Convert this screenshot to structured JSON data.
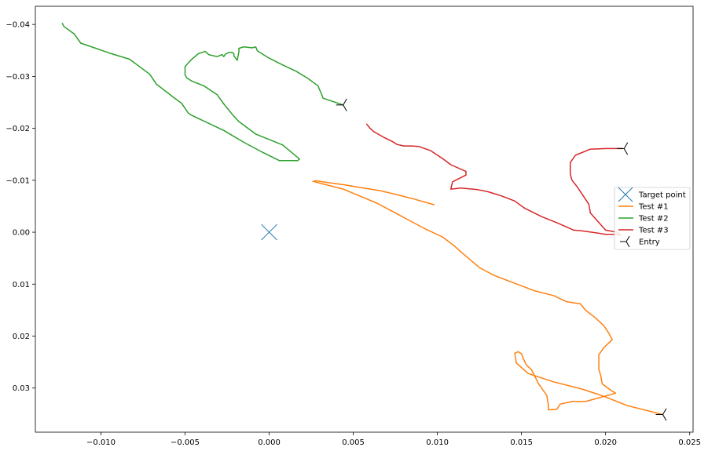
{
  "chart_data": {
    "type": "line",
    "title": "",
    "xlabel": "",
    "ylabel": "",
    "xlim": [
      -0.0139,
      0.0252
    ],
    "ylim": [
      0.0385,
      -0.0435
    ],
    "y_inverted": true,
    "grid": false,
    "xticks": [
      -0.01,
      -0.005,
      0.0,
      0.005,
      0.01,
      0.015,
      0.02,
      0.025
    ],
    "xtick_labels": [
      "−0.010",
      "−0.005",
      "0.000",
      "0.005",
      "0.010",
      "0.015",
      "0.020",
      "0.025"
    ],
    "yticks": [
      -0.04,
      -0.03,
      -0.02,
      -0.01,
      0.0,
      0.01,
      0.02,
      0.03
    ],
    "ytick_labels": [
      "−0.04",
      "−0.03",
      "−0.02",
      "−0.01",
      "0.00",
      "0.01",
      "0.02",
      "0.03"
    ],
    "legend": {
      "placement": "center-right",
      "entries": [
        "Target point",
        "Test #1",
        "Test #2",
        "Test #3",
        "Entry"
      ]
    },
    "target_point": {
      "name": "Target point",
      "marker": "x",
      "color": "#1f77b4",
      "x": 0.0,
      "y": 0.0
    },
    "series": [
      {
        "name": "Test #1",
        "color": "#ff7f0e",
        "points": [
          [
            0.0234,
            0.0351
          ],
          [
            0.0213,
            0.0334
          ],
          [
            0.0199,
            0.0316
          ],
          [
            0.0186,
            0.0302
          ],
          [
            0.0169,
            0.0288
          ],
          [
            0.0154,
            0.0272
          ],
          [
            0.0147,
            0.0252
          ],
          [
            0.0146,
            0.0233
          ],
          [
            0.0148,
            0.023
          ],
          [
            0.015,
            0.0234
          ],
          [
            0.0151,
            0.0243
          ],
          [
            0.0153,
            0.0256
          ],
          [
            0.0156,
            0.0265
          ],
          [
            0.0158,
            0.0278
          ],
          [
            0.016,
            0.0291
          ],
          [
            0.0163,
            0.0305
          ],
          [
            0.0165,
            0.0314
          ],
          [
            0.0166,
            0.0333
          ],
          [
            0.0166,
            0.0342
          ],
          [
            0.0171,
            0.0341
          ],
          [
            0.0173,
            0.0331
          ],
          [
            0.018,
            0.0326
          ],
          [
            0.0188,
            0.0326
          ],
          [
            0.0197,
            0.0318
          ],
          [
            0.0206,
            0.031
          ],
          [
            0.0203,
            0.0304
          ],
          [
            0.0198,
            0.0292
          ],
          [
            0.0197,
            0.0275
          ],
          [
            0.0196,
            0.0264
          ],
          [
            0.0196,
            0.0247
          ],
          [
            0.0196,
            0.0236
          ],
          [
            0.0199,
            0.0222
          ],
          [
            0.0204,
            0.0207
          ],
          [
            0.0202,
            0.0195
          ],
          [
            0.0199,
            0.018
          ],
          [
            0.0194,
            0.0165
          ],
          [
            0.0188,
            0.015
          ],
          [
            0.0185,
            0.0138
          ],
          [
            0.0177,
            0.0134
          ],
          [
            0.0169,
            0.0122
          ],
          [
            0.0158,
            0.0113
          ],
          [
            0.0144,
            0.0096
          ],
          [
            0.0133,
            0.0082
          ],
          [
            0.0125,
            0.0068
          ],
          [
            0.0114,
            0.0038
          ],
          [
            0.011,
            0.0026
          ],
          [
            0.0103,
            0.0009
          ],
          [
            0.0093,
            -0.0006
          ],
          [
            0.0082,
            -0.0025
          ],
          [
            0.0064,
            -0.0056
          ],
          [
            0.0044,
            -0.0083
          ],
          [
            0.0026,
            -0.0098
          ],
          [
            0.0028,
            -0.0099
          ],
          [
            0.0034,
            -0.0096
          ],
          [
            0.0045,
            -0.0091
          ],
          [
            0.0058,
            -0.0084
          ],
          [
            0.0066,
            -0.008
          ],
          [
            0.0075,
            -0.0073
          ],
          [
            0.0086,
            -0.0064
          ],
          [
            0.0098,
            -0.0053
          ]
        ]
      },
      {
        "name": "Test #2",
        "color": "#2ca02c",
        "points": [
          [
            0.0044,
            -0.0245
          ],
          [
            0.0032,
            -0.0258
          ],
          [
            0.0031,
            -0.0267
          ],
          [
            0.003,
            -0.0274
          ],
          [
            0.0029,
            -0.0282
          ],
          [
            0.0023,
            -0.0296
          ],
          [
            0.0016,
            -0.031
          ],
          [
            0.0008,
            -0.0322
          ],
          [
            0.0,
            -0.0335
          ],
          [
            -0.0007,
            -0.0349
          ],
          [
            -0.0008,
            -0.0357
          ],
          [
            -0.001,
            -0.0355
          ],
          [
            -0.0015,
            -0.0357
          ],
          [
            -0.0018,
            -0.0354
          ],
          [
            -0.0018,
            -0.0347
          ],
          [
            -0.0019,
            -0.0331
          ],
          [
            -0.0021,
            -0.034
          ],
          [
            -0.0021,
            -0.0344
          ],
          [
            -0.0022,
            -0.0346
          ],
          [
            -0.0024,
            -0.0346
          ],
          [
            -0.0026,
            -0.0343
          ],
          [
            -0.0027,
            -0.0338
          ],
          [
            -0.0028,
            -0.0342
          ],
          [
            -0.0031,
            -0.0338
          ],
          [
            -0.0036,
            -0.0342
          ],
          [
            -0.0038,
            -0.0348
          ],
          [
            -0.0042,
            -0.0344
          ],
          [
            -0.0046,
            -0.0333
          ],
          [
            -0.005,
            -0.0319
          ],
          [
            -0.005,
            -0.0303
          ],
          [
            -0.0049,
            -0.0297
          ],
          [
            -0.0046,
            -0.0291
          ],
          [
            -0.0039,
            -0.0282
          ],
          [
            -0.0031,
            -0.0265
          ],
          [
            -0.0027,
            -0.0247
          ],
          [
            -0.0022,
            -0.0227
          ],
          [
            -0.0018,
            -0.0213
          ],
          [
            -0.0008,
            -0.0189
          ],
          [
            0.0008,
            -0.0168
          ],
          [
            0.0018,
            -0.0141
          ],
          [
            0.0017,
            -0.0138
          ],
          [
            0.0006,
            -0.0138
          ],
          [
            -0.0004,
            -0.0154
          ],
          [
            -0.0015,
            -0.0173
          ],
          [
            -0.0027,
            -0.0196
          ],
          [
            -0.0046,
            -0.0225
          ],
          [
            -0.0048,
            -0.0229
          ],
          [
            -0.0052,
            -0.0248
          ],
          [
            -0.0057,
            -0.026
          ],
          [
            -0.0067,
            -0.0285
          ],
          [
            -0.0071,
            -0.0304
          ],
          [
            -0.0083,
            -0.0333
          ],
          [
            -0.0095,
            -0.0345
          ],
          [
            -0.0112,
            -0.0364
          ],
          [
            -0.0116,
            -0.0382
          ],
          [
            -0.0122,
            -0.0396
          ],
          [
            -0.0123,
            -0.0402
          ]
        ]
      },
      {
        "name": "Test #3",
        "color": "#d62728",
        "points": [
          [
            0.0058,
            -0.0208
          ],
          [
            0.006,
            -0.02
          ],
          [
            0.0062,
            -0.0194
          ],
          [
            0.0068,
            -0.0183
          ],
          [
            0.0073,
            -0.0175
          ],
          [
            0.0076,
            -0.0169
          ],
          [
            0.008,
            -0.0166
          ],
          [
            0.0085,
            -0.0166
          ],
          [
            0.0089,
            -0.0165
          ],
          [
            0.0096,
            -0.0157
          ],
          [
            0.0103,
            -0.0142
          ],
          [
            0.0108,
            -0.013
          ],
          [
            0.0117,
            -0.0117
          ],
          [
            0.0117,
            -0.011
          ],
          [
            0.0109,
            -0.0097
          ],
          [
            0.0108,
            -0.0083
          ],
          [
            0.0114,
            -0.0085
          ],
          [
            0.0124,
            -0.0082
          ],
          [
            0.013,
            -0.0078
          ],
          [
            0.0138,
            -0.007
          ],
          [
            0.0146,
            -0.006
          ],
          [
            0.0152,
            -0.0046
          ],
          [
            0.0162,
            -0.003
          ],
          [
            0.0172,
            -0.0017
          ],
          [
            0.0181,
            -0.0004
          ],
          [
            0.0185,
            -0.0003
          ],
          [
            0.0192,
            0.0
          ],
          [
            0.02,
            0.0004
          ],
          [
            0.0206,
            0.0004
          ],
          [
            0.0209,
            0.0006
          ],
          [
            0.0207,
            0.0
          ],
          [
            0.02,
            -0.0004
          ],
          [
            0.0191,
            -0.0037
          ],
          [
            0.019,
            -0.0054
          ],
          [
            0.0183,
            -0.0088
          ],
          [
            0.018,
            -0.01
          ],
          [
            0.0179,
            -0.0112
          ],
          [
            0.0179,
            -0.0134
          ],
          [
            0.0182,
            -0.0148
          ],
          [
            0.0191,
            -0.016
          ],
          [
            0.0201,
            -0.0161
          ],
          [
            0.021,
            -0.0161
          ]
        ]
      }
    ],
    "entry_points": {
      "name": "Entry",
      "marker": "tri",
      "color": "#000000",
      "points": [
        [
          0.0044,
          -0.0245
        ],
        [
          0.0211,
          -0.0161
        ],
        [
          0.0234,
          0.0351
        ]
      ]
    }
  }
}
